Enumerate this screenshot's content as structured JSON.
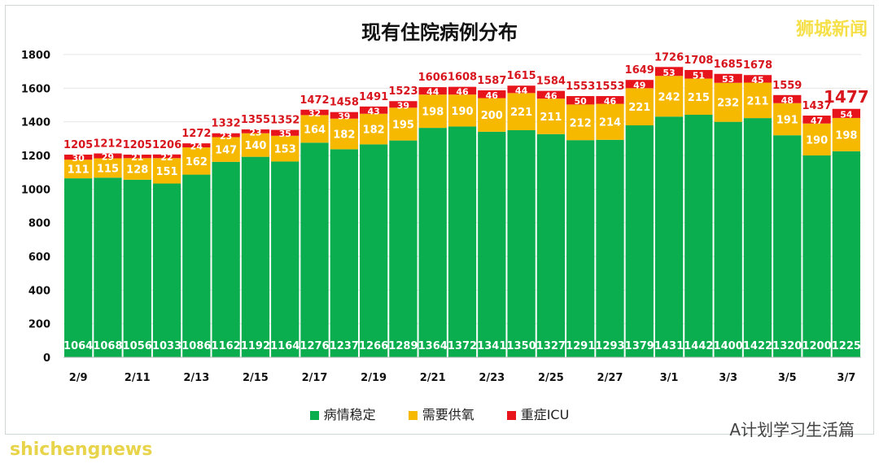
{
  "chart_data": {
    "type": "bar",
    "stacked": true,
    "title": "现有住院病例分布",
    "categories": [
      "2/9",
      "2/10",
      "2/11",
      "2/12",
      "2/13",
      "2/14",
      "2/15",
      "2/16",
      "2/17",
      "2/18",
      "2/19",
      "2/20",
      "2/21",
      "2/22",
      "2/23",
      "2/24",
      "2/25",
      "2/26",
      "2/27",
      "2/28",
      "3/1",
      "3/2",
      "3/3",
      "3/4",
      "3/5",
      "3/6",
      "3/7"
    ],
    "tick_labels": [
      "2/9",
      "2/11",
      "2/13",
      "2/15",
      "2/17",
      "2/19",
      "2/21",
      "2/23",
      "2/25",
      "2/27",
      "3/1",
      "3/3",
      "3/5",
      "3/7"
    ],
    "series": [
      {
        "name": "病情稳定",
        "color": "#0aae4e",
        "values": [
          1064,
          1068,
          1056,
          1033,
          1086,
          1162,
          1192,
          1164,
          1276,
          1237,
          1266,
          1289,
          1364,
          1372,
          1341,
          1350,
          1327,
          1291,
          1293,
          1379,
          1431,
          1442,
          1400,
          1422,
          1320,
          1200,
          1225
        ]
      },
      {
        "name": "需要供氧",
        "color": "#f7b800",
        "values": [
          111,
          115,
          128,
          151,
          162,
          147,
          140,
          153,
          164,
          182,
          182,
          195,
          198,
          190,
          200,
          221,
          211,
          212,
          214,
          221,
          242,
          215,
          232,
          211,
          191,
          190,
          198
        ]
      },
      {
        "name": "重症ICU",
        "color": "#e8141c",
        "values": [
          30,
          29,
          21,
          22,
          24,
          23,
          23,
          35,
          32,
          39,
          43,
          39,
          44,
          46,
          46,
          44,
          46,
          50,
          46,
          49,
          53,
          51,
          53,
          45,
          48,
          47,
          54
        ]
      }
    ],
    "totals": [
      1205,
      1212,
      1205,
      1206,
      1272,
      1332,
      1355,
      1352,
      1472,
      1458,
      1491,
      1523,
      1606,
      1608,
      1587,
      1615,
      1584,
      1553,
      1553,
      1649,
      1726,
      1708,
      1685,
      1678,
      1559,
      1437,
      1477
    ],
    "ylim": [
      0,
      1800
    ],
    "yticks": [
      0,
      200,
      400,
      600,
      800,
      1000,
      1200,
      1400,
      1600,
      1800
    ],
    "grid": true,
    "legend": "bottom"
  },
  "watermarks": {
    "top_right": "狮城新闻",
    "bottom_left": "shichengnews",
    "bottom_right": "A计划学习生活篇"
  }
}
